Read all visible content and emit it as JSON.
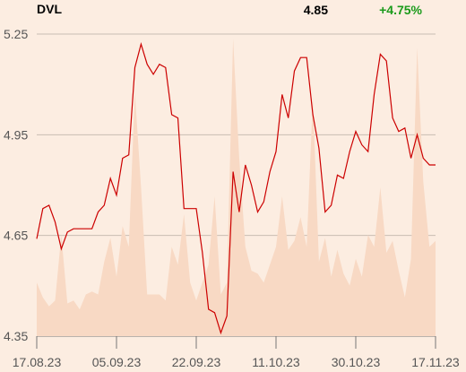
{
  "header": {
    "ticker": "DVL",
    "last_price": "4.85",
    "change": "+4.75%",
    "change_color": "#1a9a1a"
  },
  "chart_data": {
    "type": "line",
    "title": "",
    "xlabel": "",
    "ylabel": "",
    "ylim": [
      4.35,
      5.25
    ],
    "yticks": [
      "5.25",
      "4.95",
      "4.65",
      "4.35"
    ],
    "yticks_values": [
      5.25,
      4.95,
      4.65,
      4.35
    ],
    "xticks": [
      "17.08.23",
      "05.09.23",
      "22.09.23",
      "11.10.23",
      "30.10.23",
      "17.11.23"
    ],
    "grid": "horizontal",
    "line_color": "#cc0000",
    "volume_color": "#f8d9c4",
    "series": [
      {
        "kind": "price",
        "values": [
          4.64,
          4.73,
          4.74,
          4.69,
          4.61,
          4.66,
          4.67,
          4.67,
          4.67,
          4.67,
          4.72,
          4.74,
          4.82,
          4.77,
          4.88,
          4.89,
          5.15,
          5.22,
          5.16,
          5.13,
          5.16,
          5.15,
          5.01,
          5.0,
          4.73,
          4.73,
          4.73,
          4.6,
          4.43,
          4.42,
          4.36,
          4.41,
          4.84,
          4.72,
          4.86,
          4.8,
          4.72,
          4.75,
          4.84,
          4.9,
          5.07,
          5.0,
          5.14,
          5.18,
          5.18,
          5.01,
          4.91,
          4.72,
          4.74,
          4.83,
          4.82,
          4.9,
          4.96,
          4.92,
          4.9,
          5.07,
          5.19,
          5.17,
          5.0,
          4.96,
          4.97,
          4.88,
          4.95,
          4.88,
          4.86,
          4.86
        ]
      },
      {
        "kind": "volume",
        "values": [
          0.18,
          0.13,
          0.1,
          0.12,
          0.34,
          0.11,
          0.12,
          0.09,
          0.14,
          0.15,
          0.14,
          0.25,
          0.33,
          0.2,
          0.37,
          0.3,
          0.82,
          0.5,
          0.14,
          0.14,
          0.14,
          0.12,
          0.3,
          0.24,
          0.41,
          0.18,
          0.12,
          0.18,
          0.24,
          0.47,
          0.14,
          0.18,
          1.0,
          0.6,
          0.3,
          0.22,
          0.21,
          0.18,
          0.24,
          0.3,
          0.47,
          0.29,
          0.32,
          0.4,
          0.3,
          0.8,
          0.25,
          0.33,
          0.2,
          0.29,
          0.21,
          0.17,
          0.26,
          0.2,
          0.34,
          0.3,
          0.5,
          0.28,
          0.32,
          0.22,
          0.13,
          0.26,
          0.97,
          0.52,
          0.3,
          0.32
        ]
      }
    ]
  }
}
